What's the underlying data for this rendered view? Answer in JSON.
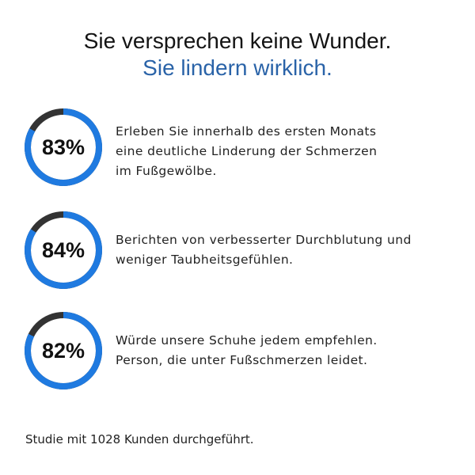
{
  "headline": "Sie versprechen keine Wunder.",
  "subheadline": "Sie lindern wirklich.",
  "colors": {
    "ring_fill": "#1f7ae0",
    "ring_rest": "#333333",
    "subheadline": "#2a63a8"
  },
  "stats": [
    {
      "percent": 83,
      "label": "83%",
      "lines": [
        "Erleben Sie innerhalb des ersten Monats",
        "eine deutliche Linderung der Schmerzen",
        "im Fußgewölbe."
      ]
    },
    {
      "percent": 84,
      "label": "84%",
      "lines": [
        "Berichten von verbesserter Durchblutung und",
        "weniger Taubheitsgefühlen."
      ]
    },
    {
      "percent": 82,
      "label": "82%",
      "lines": [
        "Würde unsere Schuhe jedem empfehlen.",
        "Person, die unter Fußschmerzen leidet."
      ]
    }
  ],
  "footnote": "Studie mit 1028 Kunden durchgeführt."
}
